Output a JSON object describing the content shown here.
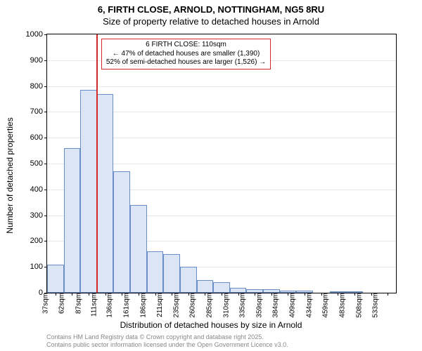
{
  "title": {
    "main": "6, FIRTH CLOSE, ARNOLD, NOTTINGHAM, NG5 8RU",
    "sub": "Size of property relative to detached houses in Arnold"
  },
  "chart": {
    "type": "histogram",
    "xlabel": "Distribution of detached houses by size in Arnold",
    "ylabel": "Number of detached properties",
    "ylim": [
      0,
      1000
    ],
    "ytick_step": 100,
    "background": "#ffffff",
    "grid_color": "#e6e6e6",
    "bar_fill": "#dbe5f5",
    "bar_border": "#6a8fc7",
    "x_categories": [
      "37sqm",
      "62sqm",
      "87sqm",
      "111sqm",
      "136sqm",
      "161sqm",
      "186sqm",
      "211sqm",
      "235sqm",
      "260sqm",
      "285sqm",
      "310sqm",
      "335sqm",
      "359sqm",
      "384sqm",
      "409sqm",
      "434sqm",
      "459sqm",
      "483sqm",
      "508sqm",
      "533sqm"
    ],
    "values": [
      110,
      560,
      785,
      770,
      470,
      340,
      160,
      150,
      100,
      50,
      40,
      18,
      14,
      14,
      8,
      8,
      0,
      6,
      4,
      0,
      0
    ],
    "marker": {
      "color": "#d62728",
      "category_index": 3
    },
    "annotation": {
      "border_color": "#d62728",
      "line1": "6 FIRTH CLOSE: 110sqm",
      "line2": "← 47% of detached houses are smaller (1,390)",
      "line3": "52% of semi-detached houses are larger (1,526) →"
    }
  },
  "footer": {
    "line1": "Contains HM Land Registry data © Crown copyright and database right 2025.",
    "line2": "Contains public sector information licensed under the Open Government Licence v3.0."
  }
}
